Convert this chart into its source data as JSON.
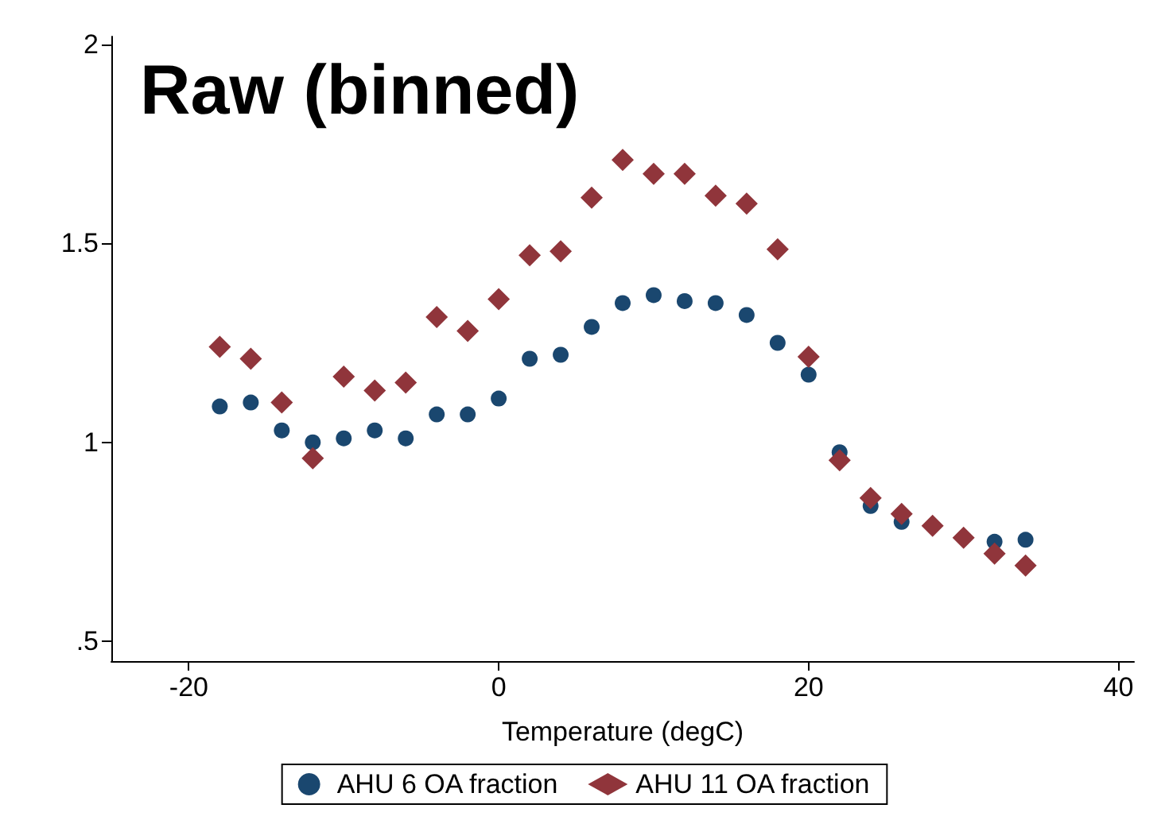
{
  "chart_data": {
    "type": "scatter",
    "title": "Raw (binned)",
    "xlabel": "Temperature (degC)",
    "x": [
      -18,
      -16,
      -14,
      -12,
      -10,
      -8,
      -6,
      -4,
      -2,
      0,
      2,
      4,
      6,
      8,
      10,
      12,
      14,
      16,
      18,
      20,
      22,
      24,
      26,
      28,
      30,
      32,
      34
    ],
    "series": [
      {
        "name": "AHU 6 OA fraction",
        "color": "#1a476f",
        "marker": "circle",
        "values": [
          1.09,
          1.1,
          1.03,
          1.0,
          1.01,
          1.03,
          1.01,
          1.07,
          1.07,
          1.11,
          1.21,
          1.22,
          1.29,
          1.35,
          1.37,
          1.355,
          1.35,
          1.32,
          1.25,
          1.17,
          0.975,
          0.84,
          0.8,
          null,
          null,
          0.75,
          0.755
        ]
      },
      {
        "name": "AHU 11 OA fraction",
        "color": "#90353b",
        "marker": "diamond",
        "values": [
          1.24,
          1.21,
          1.1,
          0.96,
          1.165,
          1.13,
          1.15,
          1.315,
          1.28,
          1.36,
          1.47,
          1.48,
          1.615,
          1.71,
          1.675,
          1.675,
          1.62,
          1.6,
          1.485,
          1.215,
          0.955,
          0.86,
          0.82,
          0.79,
          0.76,
          0.72,
          0.69
        ]
      }
    ],
    "xlim": [
      -25,
      41
    ],
    "xticks": [
      -20,
      0,
      20,
      40
    ],
    "ylim": [
      0.45,
      2.02
    ],
    "yticks": [
      {
        "value": 0.5,
        "label": ".5"
      },
      1,
      1.5,
      2
    ],
    "grid": false,
    "legend": "bottom"
  }
}
